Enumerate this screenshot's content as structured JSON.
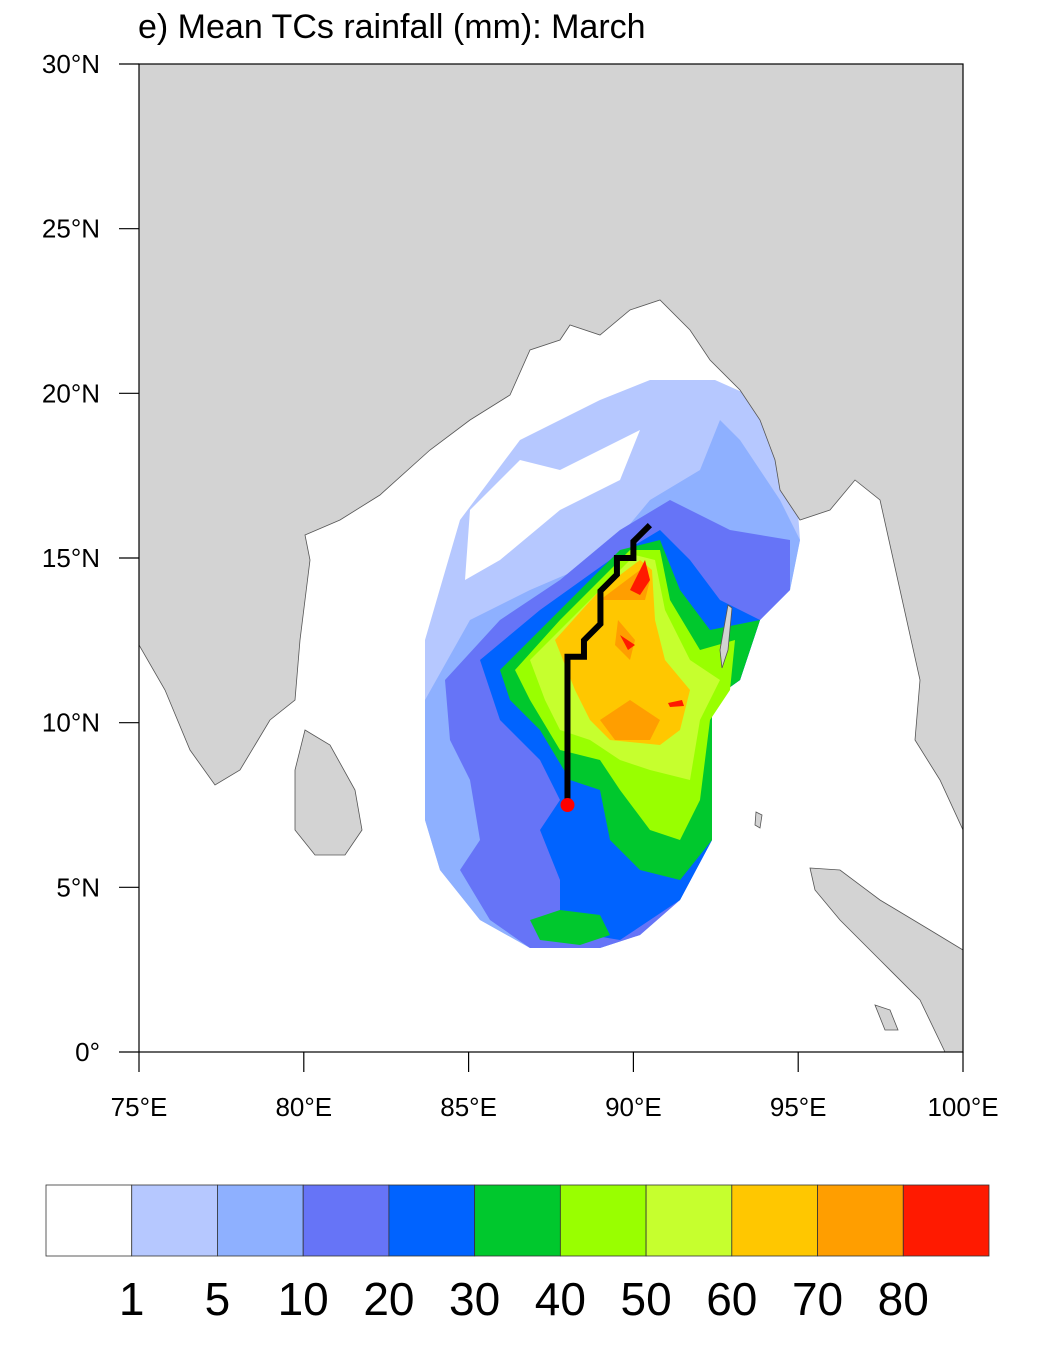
{
  "chart_data": {
    "type": "heatmap",
    "title": "e) Mean TCs rainfall (mm): March",
    "xlim": [
      75,
      100
    ],
    "ylim": [
      0,
      30
    ],
    "xticks": [
      75,
      80,
      85,
      90,
      95,
      100
    ],
    "xtick_labels": [
      "75°E",
      "80°E",
      "85°E",
      "90°E",
      "95°E",
      "100°E"
    ],
    "yticks": [
      0,
      5,
      10,
      15,
      20,
      25,
      30
    ],
    "ytick_labels": [
      "0°",
      "5°N",
      "10°N",
      "15°N",
      "20°N",
      "25°N",
      "30°N"
    ],
    "colorbar": {
      "levels": [
        "1",
        "5",
        "10",
        "20",
        "30",
        "40",
        "50",
        "60",
        "70",
        "80"
      ],
      "colors": [
        "#ffffff",
        "#b6c8ff",
        "#8eb0ff",
        "#6674f7",
        "#0063ff",
        "#00c82d",
        "#99ff00",
        "#c6ff2e",
        "#ffc700",
        "#ff9e00",
        "#ff1a00"
      ]
    },
    "track": {
      "color": "#000000",
      "genesis_color": "#ff0000",
      "points": [
        [
          88,
          7.5
        ],
        [
          88,
          12
        ],
        [
          88.5,
          12
        ],
        [
          88.5,
          12.5
        ],
        [
          89,
          13
        ],
        [
          89,
          14
        ],
        [
          89.5,
          14.5
        ],
        [
          89.5,
          15
        ],
        [
          90,
          15
        ],
        [
          90,
          15.5
        ],
        [
          90.5,
          16
        ]
      ]
    },
    "land_color": "#d3d3d3"
  }
}
